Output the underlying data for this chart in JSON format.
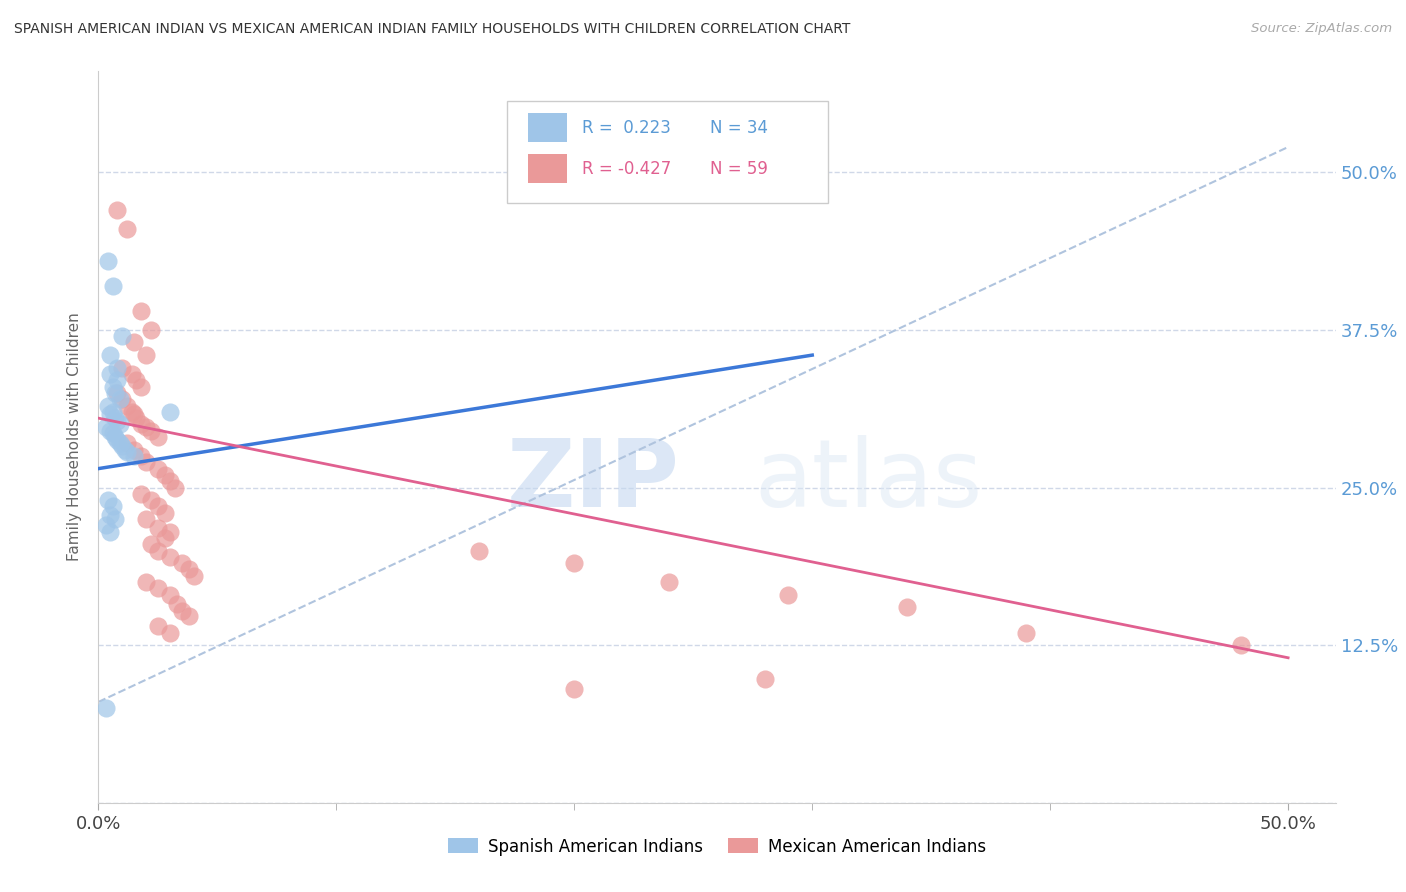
{
  "title": "SPANISH AMERICAN INDIAN VS MEXICAN AMERICAN INDIAN FAMILY HOUSEHOLDS WITH CHILDREN CORRELATION CHART",
  "source": "Source: ZipAtlas.com",
  "ylabel": "Family Households with Children",
  "legend_blue_r": "R =  0.223",
  "legend_blue_n": "N = 34",
  "legend_pink_r": "R = -0.427",
  "legend_pink_n": "N = 59",
  "legend_blue_label": "Spanish American Indians",
  "legend_pink_label": "Mexican American Indians",
  "watermark_zip": "ZIP",
  "watermark_atlas": "atlas",
  "blue_color": "#9fc5e8",
  "pink_color": "#ea9999",
  "blue_line_color": "#3c78d8",
  "pink_line_color": "#e06090",
  "dashed_line_color": "#b0c4de",
  "bg_color": "#ffffff",
  "grid_color": "#d0d8e8",
  "blue_scatter": [
    [
      0.004,
      0.43
    ],
    [
      0.006,
      0.41
    ],
    [
      0.005,
      0.355
    ],
    [
      0.01,
      0.37
    ],
    [
      0.005,
      0.34
    ],
    [
      0.008,
      0.345
    ],
    [
      0.006,
      0.33
    ],
    [
      0.008,
      0.335
    ],
    [
      0.007,
      0.325
    ],
    [
      0.009,
      0.32
    ],
    [
      0.004,
      0.315
    ],
    [
      0.006,
      0.31
    ],
    [
      0.005,
      0.308
    ],
    [
      0.007,
      0.305
    ],
    [
      0.008,
      0.303
    ],
    [
      0.009,
      0.3
    ],
    [
      0.003,
      0.298
    ],
    [
      0.005,
      0.295
    ],
    [
      0.006,
      0.293
    ],
    [
      0.007,
      0.29
    ],
    [
      0.008,
      0.288
    ],
    [
      0.009,
      0.285
    ],
    [
      0.01,
      0.283
    ],
    [
      0.011,
      0.28
    ],
    [
      0.012,
      0.278
    ],
    [
      0.015,
      0.275
    ],
    [
      0.004,
      0.24
    ],
    [
      0.006,
      0.235
    ],
    [
      0.005,
      0.228
    ],
    [
      0.007,
      0.225
    ],
    [
      0.003,
      0.22
    ],
    [
      0.005,
      0.215
    ],
    [
      0.003,
      0.075
    ],
    [
      0.03,
      0.31
    ]
  ],
  "pink_scatter": [
    [
      0.008,
      0.47
    ],
    [
      0.012,
      0.455
    ],
    [
      0.018,
      0.39
    ],
    [
      0.022,
      0.375
    ],
    [
      0.015,
      0.365
    ],
    [
      0.02,
      0.355
    ],
    [
      0.01,
      0.345
    ],
    [
      0.014,
      0.34
    ],
    [
      0.016,
      0.335
    ],
    [
      0.018,
      0.33
    ],
    [
      0.008,
      0.325
    ],
    [
      0.01,
      0.32
    ],
    [
      0.012,
      0.315
    ],
    [
      0.014,
      0.31
    ],
    [
      0.015,
      0.308
    ],
    [
      0.016,
      0.305
    ],
    [
      0.018,
      0.3
    ],
    [
      0.02,
      0.298
    ],
    [
      0.022,
      0.295
    ],
    [
      0.025,
      0.29
    ],
    [
      0.012,
      0.285
    ],
    [
      0.015,
      0.28
    ],
    [
      0.018,
      0.275
    ],
    [
      0.02,
      0.27
    ],
    [
      0.025,
      0.265
    ],
    [
      0.028,
      0.26
    ],
    [
      0.03,
      0.255
    ],
    [
      0.032,
      0.25
    ],
    [
      0.018,
      0.245
    ],
    [
      0.022,
      0.24
    ],
    [
      0.025,
      0.235
    ],
    [
      0.028,
      0.23
    ],
    [
      0.02,
      0.225
    ],
    [
      0.025,
      0.218
    ],
    [
      0.03,
      0.215
    ],
    [
      0.028,
      0.21
    ],
    [
      0.022,
      0.205
    ],
    [
      0.025,
      0.2
    ],
    [
      0.03,
      0.195
    ],
    [
      0.035,
      0.19
    ],
    [
      0.038,
      0.185
    ],
    [
      0.04,
      0.18
    ],
    [
      0.02,
      0.175
    ],
    [
      0.025,
      0.17
    ],
    [
      0.03,
      0.165
    ],
    [
      0.033,
      0.158
    ],
    [
      0.035,
      0.152
    ],
    [
      0.038,
      0.148
    ],
    [
      0.025,
      0.14
    ],
    [
      0.03,
      0.135
    ],
    [
      0.16,
      0.2
    ],
    [
      0.2,
      0.19
    ],
    [
      0.24,
      0.175
    ],
    [
      0.29,
      0.165
    ],
    [
      0.34,
      0.155
    ],
    [
      0.39,
      0.135
    ],
    [
      0.2,
      0.09
    ],
    [
      0.28,
      0.098
    ],
    [
      0.48,
      0.125
    ]
  ],
  "xlim": [
    0.0,
    0.52
  ],
  "ylim": [
    0.0,
    0.58
  ],
  "blue_line_x": [
    0.0,
    0.3
  ],
  "blue_line_y": [
    0.265,
    0.355
  ],
  "pink_line_x": [
    0.0,
    0.5
  ],
  "pink_line_y": [
    0.305,
    0.115
  ],
  "dash_line_x": [
    0.0,
    0.5
  ],
  "dash_line_y": [
    0.08,
    0.52
  ]
}
